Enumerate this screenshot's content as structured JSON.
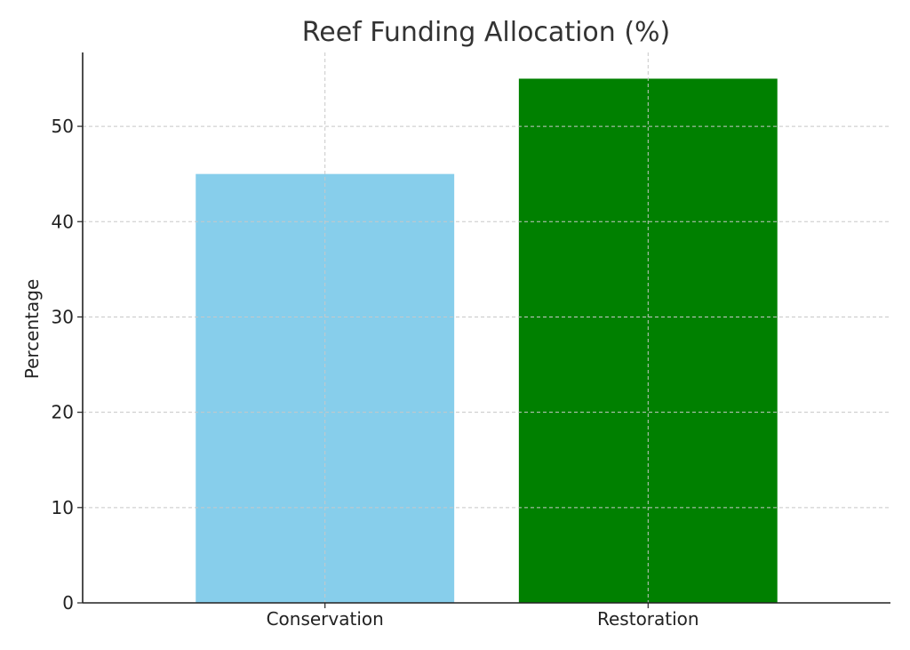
{
  "chart_data": {
    "type": "bar",
    "title": "Reef Funding Allocation (%)",
    "xlabel": "",
    "ylabel": "Percentage",
    "categories": [
      "Conservation",
      "Restoration"
    ],
    "values": [
      45,
      55
    ],
    "colors": [
      "#87CEEB",
      "#008000"
    ],
    "ylim": [
      0,
      57.75
    ],
    "yticks": [
      0,
      10,
      20,
      30,
      40,
      50
    ],
    "ytick_labels": [
      "0",
      "10",
      "20",
      "30",
      "40",
      "50"
    ],
    "grid": true,
    "legend": "none"
  }
}
